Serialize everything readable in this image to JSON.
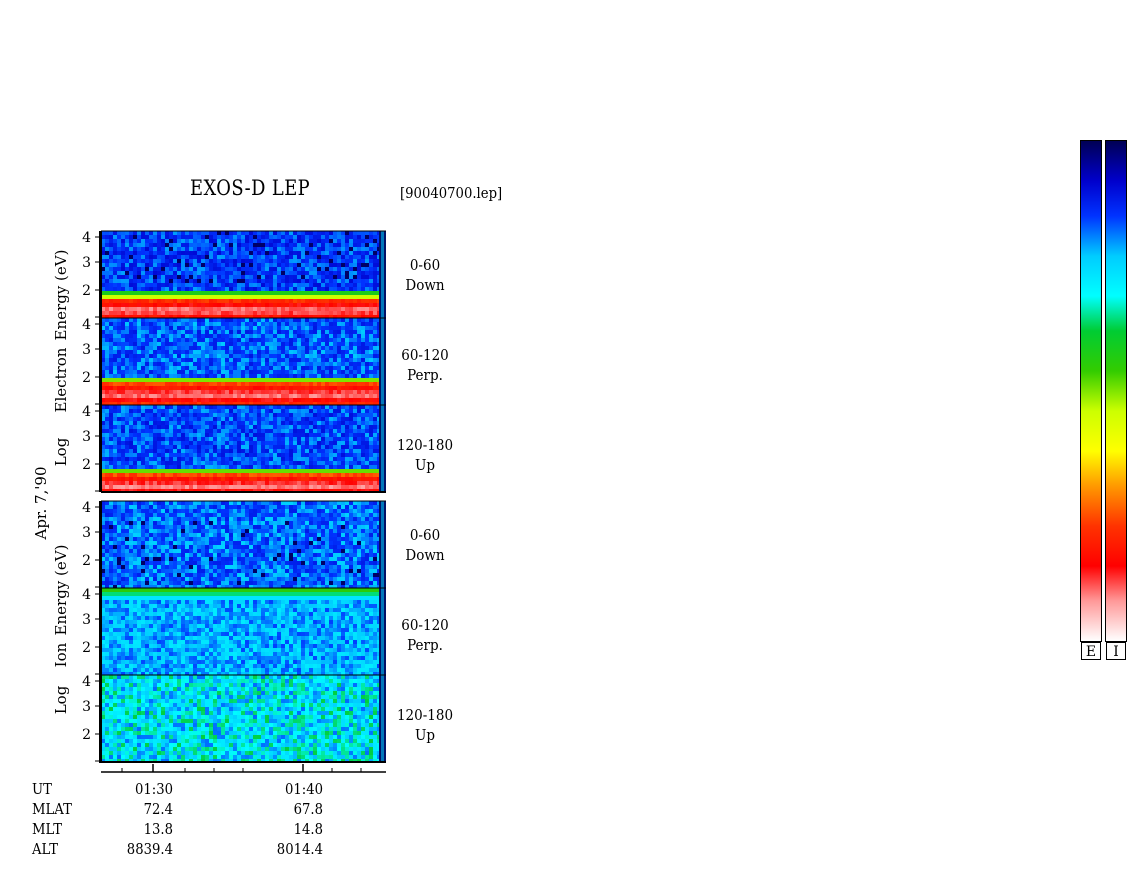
{
  "header": {
    "title": "EXOS-D LEP",
    "filename": "[90040700.lep]"
  },
  "chart_data": {
    "type": "heatmap",
    "date_label": "Apr. 7,'90",
    "groups": [
      {
        "ylabel_lines": [
          "Log",
          "Electron",
          "Energy (eV)"
        ],
        "panels": [
          {
            "range": "0-60",
            "dir": "Down",
            "band_level": 0.88,
            "mean": 0.15
          },
          {
            "range": "60-120",
            "dir": "Perp.",
            "band_level": 0.85,
            "mean": 0.17
          },
          {
            "range": "120-180",
            "dir": "Up",
            "band_level": 0.9,
            "mean": 0.16
          }
        ]
      },
      {
        "ylabel_lines": [
          "Log",
          "Ion",
          "Energy (eV)"
        ],
        "panels": [
          {
            "range": "0-60",
            "dir": "Down",
            "mean": 0.18
          },
          {
            "range": "60-120",
            "dir": "Perp.",
            "mean": 0.22
          },
          {
            "range": "120-180",
            "dir": "Up",
            "mean": 0.28
          }
        ]
      }
    ],
    "yticks": [
      "4",
      "3",
      "2"
    ],
    "xticks": [
      "01:30",
      "01:40"
    ],
    "footer": [
      {
        "name": "UT",
        "values": [
          "01:30",
          "01:40"
        ]
      },
      {
        "name": "MLAT",
        "values": [
          "72.4",
          "67.8"
        ]
      },
      {
        "name": "MLT",
        "values": [
          "13.8",
          "14.8"
        ]
      },
      {
        "name": "ALT",
        "values": [
          "8839.4",
          "8014.4"
        ]
      }
    ],
    "colorbar_labels": [
      "E",
      "I"
    ],
    "colormap": [
      "#000066",
      "#0000cc",
      "#0033ff",
      "#00ccff",
      "#00ffff",
      "#00cc33",
      "#33cc00",
      "#ccff00",
      "#ffff00",
      "#ff9900",
      "#ff3300",
      "#ff0000",
      "#ff9999",
      "#ffffff"
    ]
  }
}
